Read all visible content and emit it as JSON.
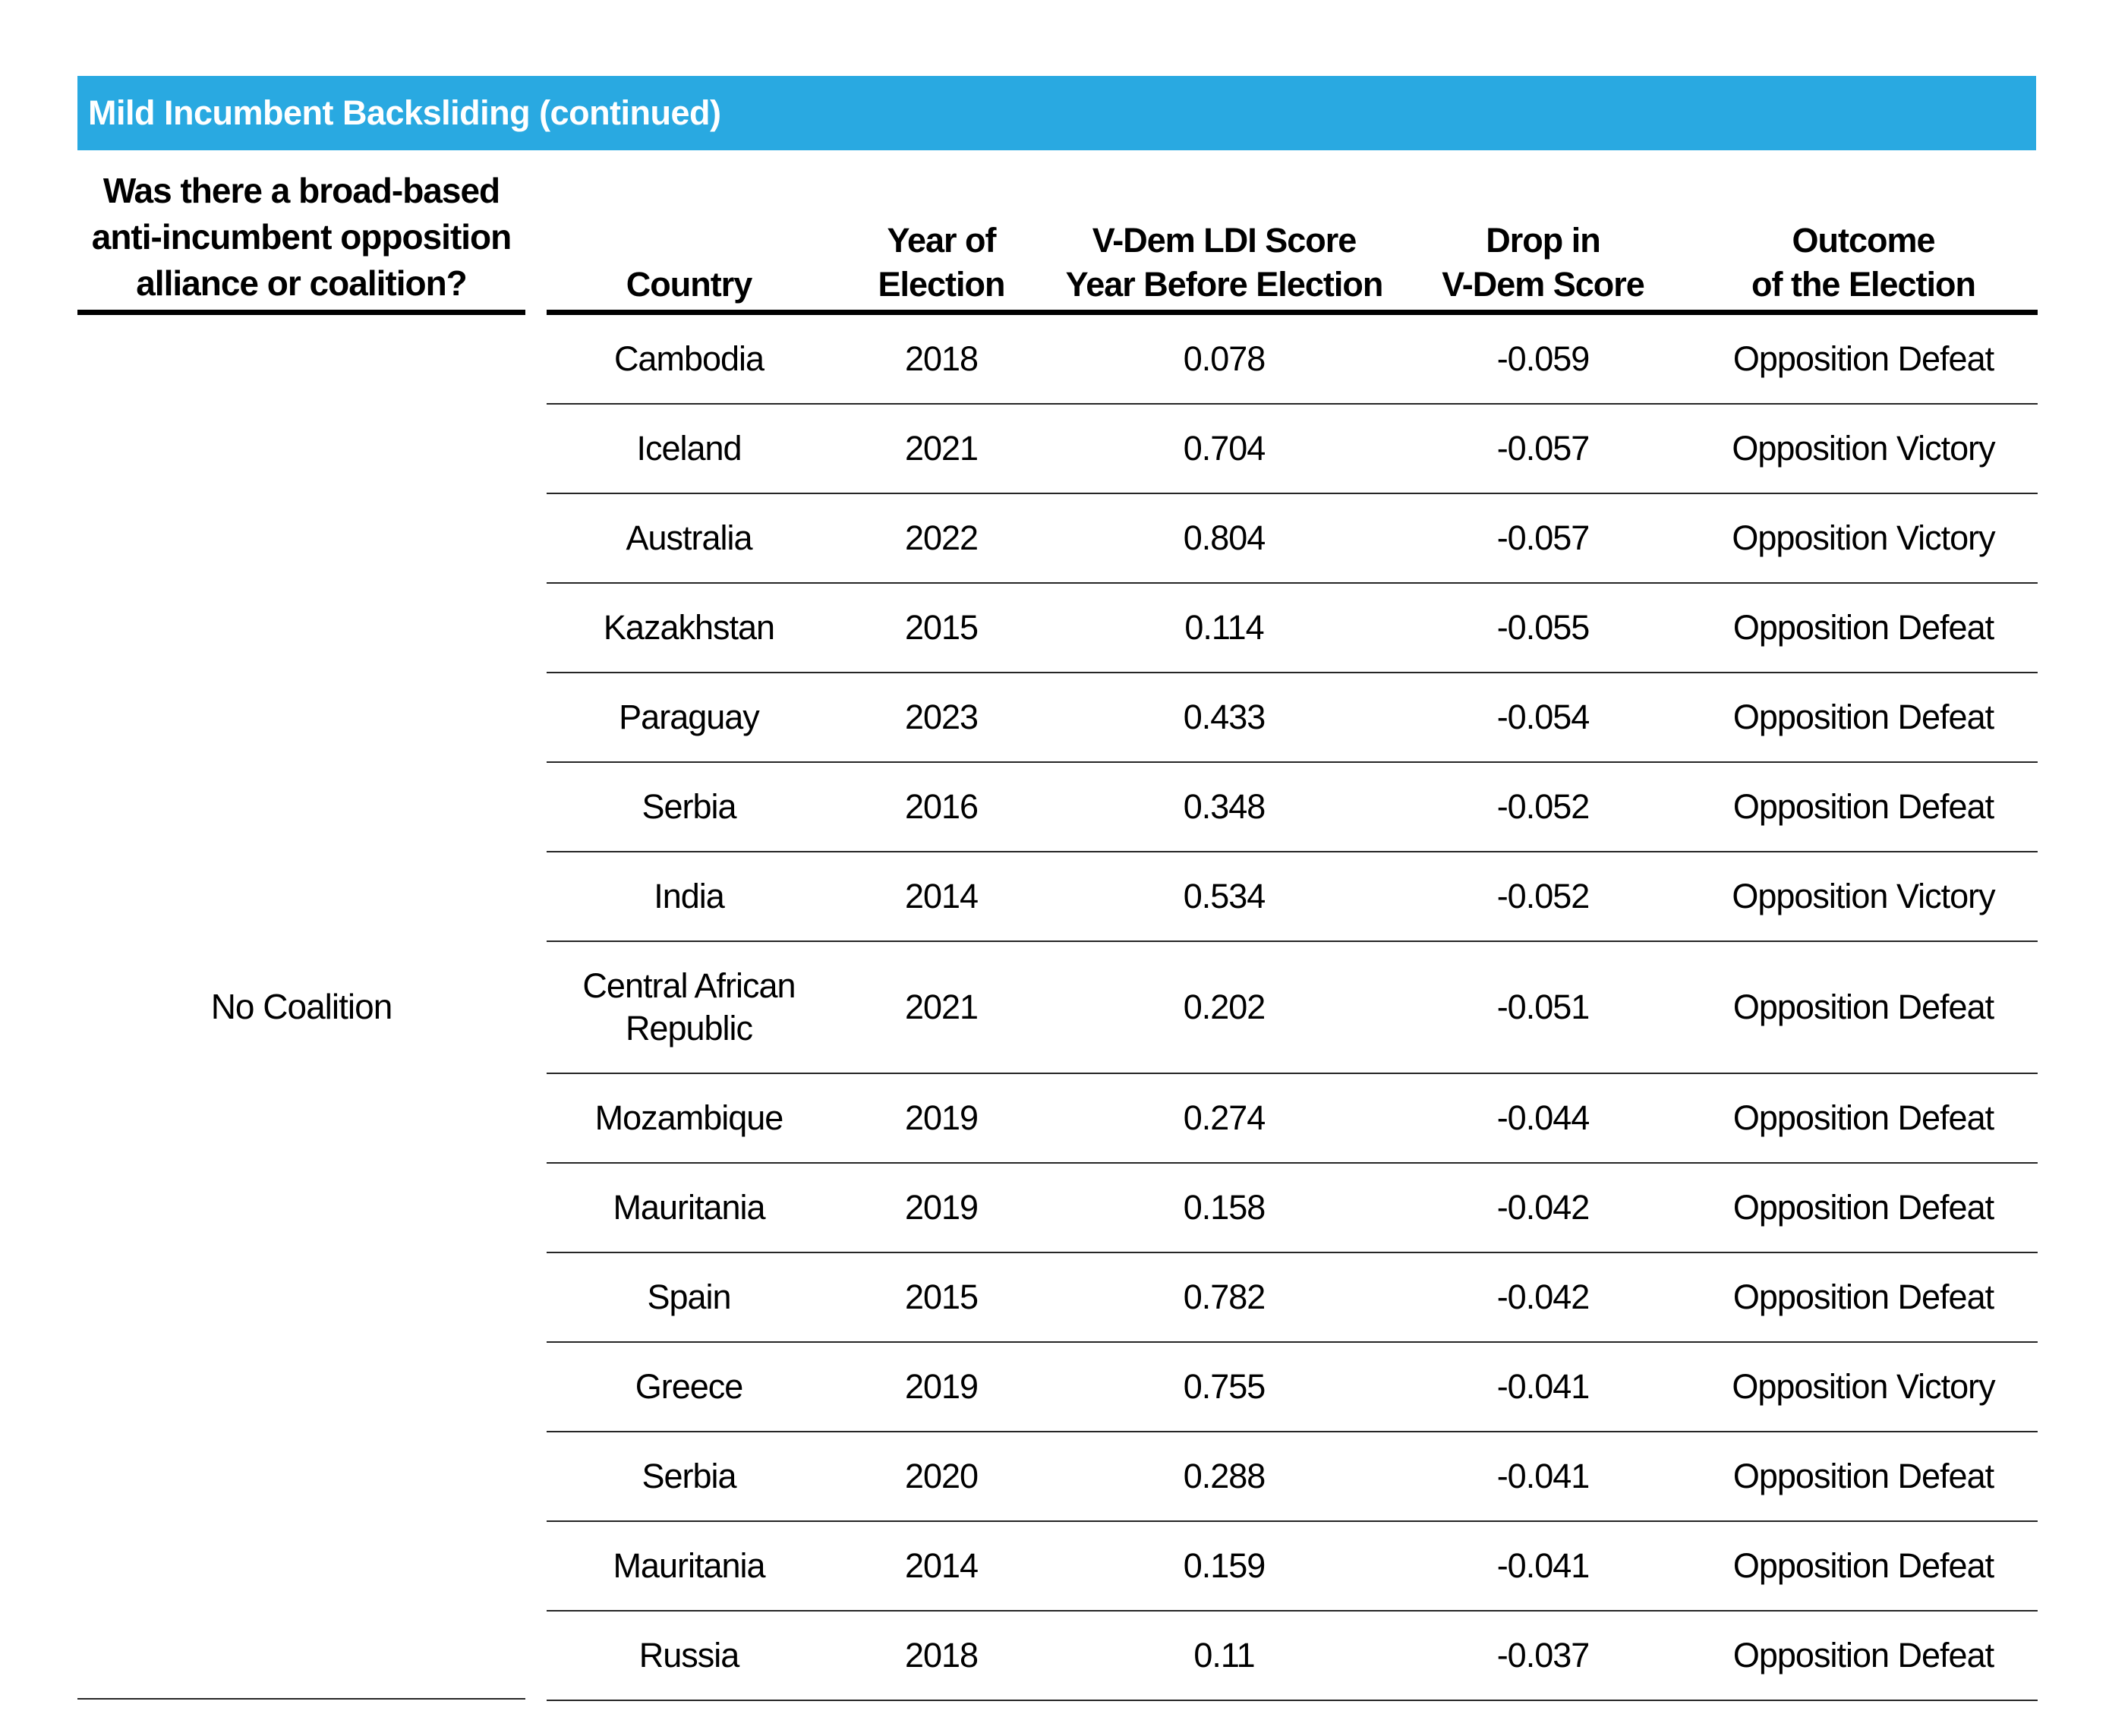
{
  "title_bar": {
    "label": "Mild Incumbent Backsliding (continued)"
  },
  "colors": {
    "accent_blue": "#29A9E1",
    "title_text": "#FFFFFF",
    "thick_rule": "#000000",
    "thin_rule": "#262626"
  },
  "coalition_column": {
    "header": "Was there a broad-based\nanti-incumbent opposition\nalliance or coalition?",
    "value": "No Coalition"
  },
  "table": {
    "columns": [
      "Country",
      "Year of\nElection",
      "V-Dem LDI Score\nYear Before Election",
      "Drop in\nV-Dem Score",
      "Outcome\nof the Election"
    ],
    "rows": [
      {
        "country": "Cambodia",
        "year": "2018",
        "ldi_score": "0.078",
        "drop": "-0.059",
        "outcome": "Opposition Defeat"
      },
      {
        "country": "Iceland",
        "year": "2021",
        "ldi_score": "0.704",
        "drop": "-0.057",
        "outcome": "Opposition Victory"
      },
      {
        "country": "Australia",
        "year": "2022",
        "ldi_score": "0.804",
        "drop": "-0.057",
        "outcome": "Opposition Victory"
      },
      {
        "country": "Kazakhstan",
        "year": "2015",
        "ldi_score": "0.114",
        "drop": "-0.055",
        "outcome": "Opposition Defeat"
      },
      {
        "country": "Paraguay",
        "year": "2023",
        "ldi_score": "0.433",
        "drop": "-0.054",
        "outcome": "Opposition Defeat"
      },
      {
        "country": "Serbia",
        "year": "2016",
        "ldi_score": "0.348",
        "drop": "-0.052",
        "outcome": "Opposition Defeat"
      },
      {
        "country": "India",
        "year": "2014",
        "ldi_score": "0.534",
        "drop": "-0.052",
        "outcome": "Opposition Victory"
      },
      {
        "country": "Central African Republic",
        "year": "2021",
        "ldi_score": "0.202",
        "drop": "-0.051",
        "outcome": "Opposition Defeat"
      },
      {
        "country": "Mozambique",
        "year": "2019",
        "ldi_score": "0.274",
        "drop": "-0.044",
        "outcome": "Opposition Defeat"
      },
      {
        "country": "Mauritania",
        "year": "2019",
        "ldi_score": "0.158",
        "drop": "-0.042",
        "outcome": "Opposition Defeat"
      },
      {
        "country": "Spain",
        "year": "2015",
        "ldi_score": "0.782",
        "drop": "-0.042",
        "outcome": "Opposition Defeat"
      },
      {
        "country": "Greece",
        "year": "2019",
        "ldi_score": "0.755",
        "drop": "-0.041",
        "outcome": "Opposition Victory"
      },
      {
        "country": "Serbia",
        "year": "2020",
        "ldi_score": "0.288",
        "drop": "-0.041",
        "outcome": "Opposition Defeat"
      },
      {
        "country": "Mauritania",
        "year": "2014",
        "ldi_score": "0.159",
        "drop": "-0.041",
        "outcome": "Opposition Defeat"
      },
      {
        "country": "Russia",
        "year": "2018",
        "ldi_score": "0.11",
        "drop": "-0.037",
        "outcome": "Opposition Defeat"
      }
    ]
  }
}
